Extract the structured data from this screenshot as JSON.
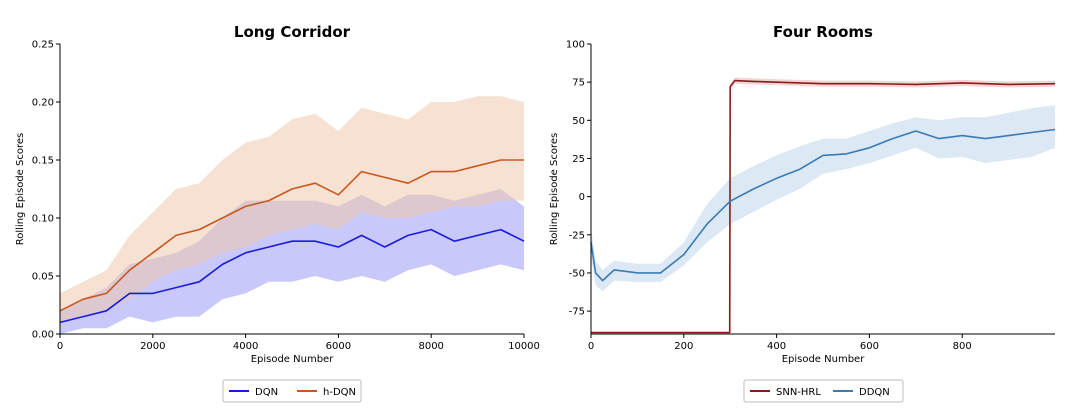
{
  "chart_data": [
    {
      "type": "line",
      "title": "Long Corridor",
      "xlabel": "Episode Number",
      "ylabel": "Rolling Episode Scores",
      "xlim": [
        0,
        10000
      ],
      "ylim": [
        0,
        0.25
      ],
      "xticks": [
        "0",
        "2000",
        "4000",
        "6000",
        "8000",
        "10000"
      ],
      "yticks": [
        "0.00",
        "0.05",
        "0.10",
        "0.15",
        "0.20",
        "0.25"
      ],
      "legend_position": "below",
      "grid": false,
      "series": [
        {
          "name": "DQN",
          "color": "#1a1ae0",
          "band_color": "#9a9af5",
          "x": [
            0,
            500,
            1000,
            1500,
            2000,
            2500,
            3000,
            3500,
            4000,
            4500,
            5000,
            5500,
            6000,
            6500,
            7000,
            7500,
            8000,
            8500,
            9000,
            9500,
            10000
          ],
          "values": [
            0.01,
            0.015,
            0.02,
            0.035,
            0.035,
            0.04,
            0.045,
            0.06,
            0.07,
            0.075,
            0.08,
            0.08,
            0.075,
            0.085,
            0.075,
            0.085,
            0.09,
            0.08,
            0.085,
            0.09,
            0.08
          ],
          "lower": [
            0.0,
            0.005,
            0.005,
            0.015,
            0.01,
            0.015,
            0.015,
            0.03,
            0.035,
            0.045,
            0.045,
            0.05,
            0.045,
            0.05,
            0.045,
            0.055,
            0.06,
            0.05,
            0.055,
            0.06,
            0.055
          ],
          "upper": [
            0.02,
            0.03,
            0.04,
            0.06,
            0.065,
            0.07,
            0.08,
            0.1,
            0.115,
            0.115,
            0.115,
            0.115,
            0.11,
            0.12,
            0.11,
            0.12,
            0.12,
            0.115,
            0.12,
            0.125,
            0.11
          ]
        },
        {
          "name": "h-DQN",
          "color": "#c8581f",
          "band_color": "#f0c9ad",
          "x": [
            0,
            500,
            1000,
            1500,
            2000,
            2500,
            3000,
            3500,
            4000,
            4500,
            5000,
            5500,
            6000,
            6500,
            7000,
            7500,
            8000,
            8500,
            9000,
            9500,
            10000
          ],
          "values": [
            0.02,
            0.03,
            0.035,
            0.055,
            0.07,
            0.085,
            0.09,
            0.1,
            0.11,
            0.115,
            0.125,
            0.13,
            0.12,
            0.14,
            0.135,
            0.13,
            0.14,
            0.14,
            0.145,
            0.15,
            0.15
          ],
          "lower": [
            0.01,
            0.015,
            0.02,
            0.03,
            0.045,
            0.055,
            0.06,
            0.07,
            0.075,
            0.085,
            0.09,
            0.095,
            0.09,
            0.105,
            0.1,
            0.1,
            0.105,
            0.11,
            0.11,
            0.115,
            0.115
          ],
          "upper": [
            0.035,
            0.045,
            0.055,
            0.085,
            0.105,
            0.125,
            0.13,
            0.15,
            0.165,
            0.17,
            0.185,
            0.19,
            0.175,
            0.195,
            0.19,
            0.185,
            0.2,
            0.2,
            0.205,
            0.205,
            0.2
          ]
        }
      ]
    },
    {
      "type": "line",
      "title": "Four Rooms",
      "xlabel": "Episode Number",
      "ylabel": "Rolling Episode Scores",
      "xlim": [
        0,
        1000
      ],
      "ylim": [
        -90,
        100
      ],
      "xticks": [
        "0",
        "200",
        "400",
        "600",
        "800"
      ],
      "yticks": [
        "-75",
        "-50",
        "-25",
        "0",
        "25",
        "50",
        "75",
        "100"
      ],
      "legend_position": "below",
      "grid": false,
      "series": [
        {
          "name": "SNN-HRL",
          "color": "#8b1a1a",
          "band_color": "#e8b5b5",
          "x": [
            0,
            150,
            299,
            300,
            310,
            350,
            400,
            500,
            600,
            700,
            800,
            900,
            1000
          ],
          "values": [
            -89,
            -89,
            -89,
            72,
            76,
            75.5,
            75,
            74,
            74,
            73.5,
            74.5,
            73.5,
            74
          ],
          "lower": [
            -89,
            -89,
            -89,
            70,
            74,
            73.5,
            73,
            72,
            72,
            71.5,
            72.5,
            71.5,
            72
          ],
          "upper": [
            -89,
            -89,
            -89,
            74,
            78,
            77.5,
            77,
            76,
            76,
            75.5,
            76.5,
            75.5,
            76
          ]
        },
        {
          "name": "DDQN",
          "color": "#3a7ab5",
          "band_color": "#bfd6ea",
          "x": [
            0,
            10,
            25,
            50,
            100,
            150,
            200,
            250,
            300,
            350,
            400,
            450,
            500,
            550,
            600,
            650,
            700,
            750,
            800,
            850,
            900,
            950,
            1000
          ],
          "values": [
            -30,
            -50,
            -55,
            -48,
            -50,
            -50,
            -38,
            -18,
            -3,
            5,
            12,
            18,
            27,
            28,
            32,
            38,
            43,
            38,
            40,
            38,
            40,
            42,
            44
          ],
          "lower": [
            -40,
            -58,
            -62,
            -55,
            -56,
            -56,
            -45,
            -30,
            -18,
            -10,
            -2,
            5,
            15,
            18,
            22,
            27,
            32,
            25,
            26,
            22,
            24,
            26,
            32
          ],
          "upper": [
            -20,
            -42,
            -48,
            -42,
            -44,
            -44,
            -30,
            -5,
            12,
            20,
            27,
            33,
            38,
            38,
            43,
            48,
            52,
            50,
            52,
            52,
            55,
            58,
            60
          ]
        }
      ]
    }
  ]
}
